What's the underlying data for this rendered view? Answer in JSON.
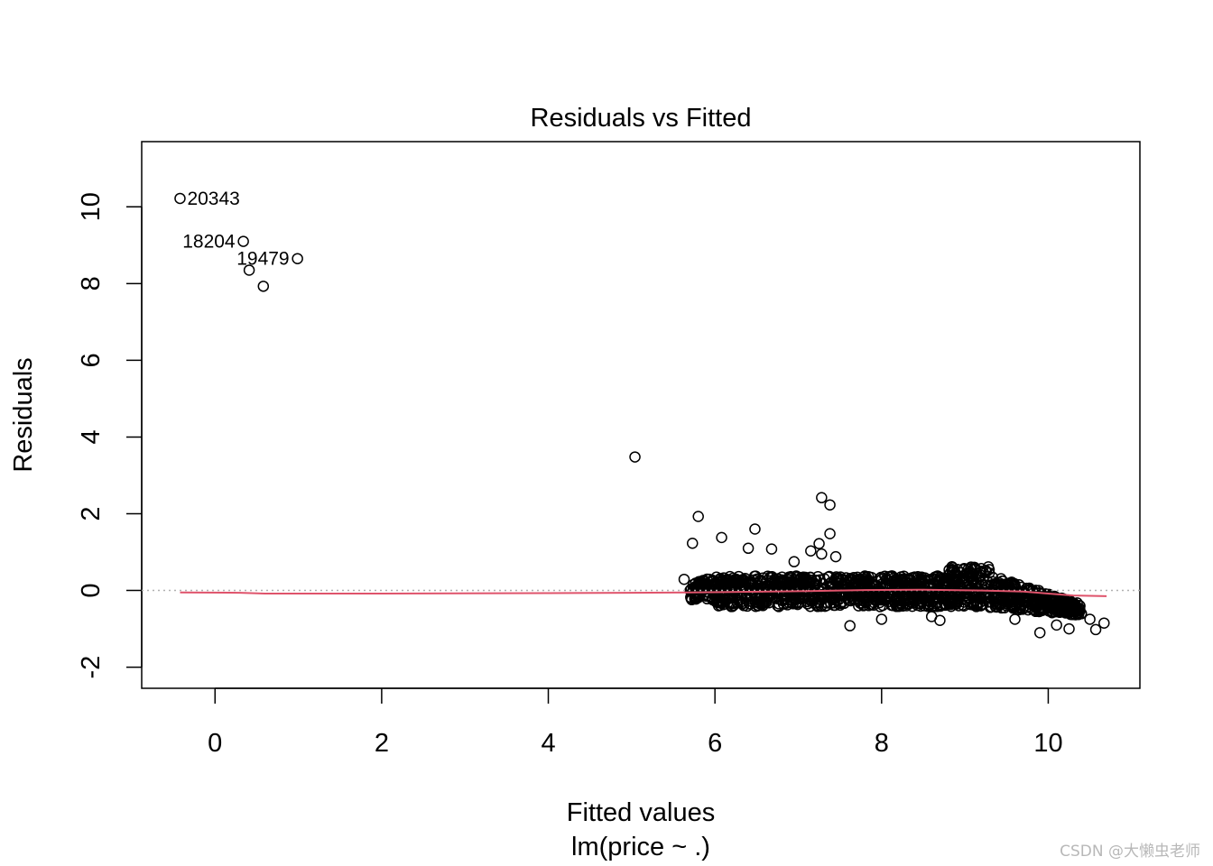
{
  "chart_data": {
    "type": "scatter",
    "title": "Residuals vs Fitted",
    "xlabel": "Fitted values",
    "sublabel": "lm(price ~ .)",
    "ylabel": "Residuals",
    "xlim": [
      -0.88,
      11.1
    ],
    "ylim": [
      -2.55,
      11.7
    ],
    "x_ticks": [
      0,
      2,
      4,
      6,
      8,
      10
    ],
    "y_ticks": [
      -2,
      0,
      2,
      4,
      6,
      8,
      10
    ],
    "reference_line": {
      "y": 0,
      "style": "dotted",
      "color": "#b0b0b0"
    },
    "smooth_color": "#df536b",
    "smooth": {
      "x": [
        -0.42,
        0.3,
        0.6,
        2.0,
        4.0,
        5.0,
        5.7,
        6.2,
        7.0,
        7.8,
        8.5,
        9.2,
        9.7,
        10.0,
        10.3,
        10.7
      ],
      "y": [
        -0.05,
        -0.06,
        -0.08,
        -0.08,
        -0.07,
        -0.06,
        -0.05,
        -0.04,
        -0.02,
        0.01,
        0.02,
        0.0,
        -0.03,
        -0.08,
        -0.13,
        -0.15
      ]
    },
    "labeled_points": [
      {
        "x": -0.42,
        "y": 10.22,
        "label": "20343",
        "side": "right"
      },
      {
        "x": 0.34,
        "y": 9.1,
        "label": "18204",
        "side": "left"
      },
      {
        "x": 0.99,
        "y": 8.65,
        "label": "19479",
        "side": "left"
      }
    ],
    "outlier_points": [
      {
        "x": 0.41,
        "y": 8.35
      },
      {
        "x": 0.58,
        "y": 7.93
      },
      {
        "x": 5.04,
        "y": 3.48
      },
      {
        "x": 5.8,
        "y": 1.93
      },
      {
        "x": 5.73,
        "y": 1.23
      },
      {
        "x": 6.08,
        "y": 1.38
      },
      {
        "x": 6.4,
        "y": 1.1
      },
      {
        "x": 6.48,
        "y": 1.6
      },
      {
        "x": 6.68,
        "y": 1.08
      },
      {
        "x": 7.28,
        "y": 2.42
      },
      {
        "x": 7.38,
        "y": 2.23
      },
      {
        "x": 7.38,
        "y": 1.48
      },
      {
        "x": 7.25,
        "y": 1.22
      },
      {
        "x": 7.28,
        "y": 0.95
      },
      {
        "x": 7.15,
        "y": 1.03
      },
      {
        "x": 7.45,
        "y": 0.88
      },
      {
        "x": 5.63,
        "y": 0.29
      },
      {
        "x": 6.95,
        "y": 0.75
      },
      {
        "x": 7.62,
        "y": -0.92
      },
      {
        "x": 8.0,
        "y": -0.75
      },
      {
        "x": 8.7,
        "y": -0.78
      },
      {
        "x": 9.9,
        "y": -1.1
      },
      {
        "x": 10.1,
        "y": -0.9
      },
      {
        "x": 10.25,
        "y": -1.0
      },
      {
        "x": 10.5,
        "y": -0.75
      },
      {
        "x": 10.57,
        "y": -1.02
      },
      {
        "x": 10.67,
        "y": -0.85
      },
      {
        "x": 9.6,
        "y": -0.75
      },
      {
        "x": 8.6,
        "y": -0.68
      }
    ],
    "dense_cloud": {
      "description": "dense band of observations",
      "x_range": [
        5.7,
        10.4
      ],
      "y_range": [
        -0.5,
        0.6
      ]
    }
  },
  "watermark": "CSDN @大懒虫老师"
}
